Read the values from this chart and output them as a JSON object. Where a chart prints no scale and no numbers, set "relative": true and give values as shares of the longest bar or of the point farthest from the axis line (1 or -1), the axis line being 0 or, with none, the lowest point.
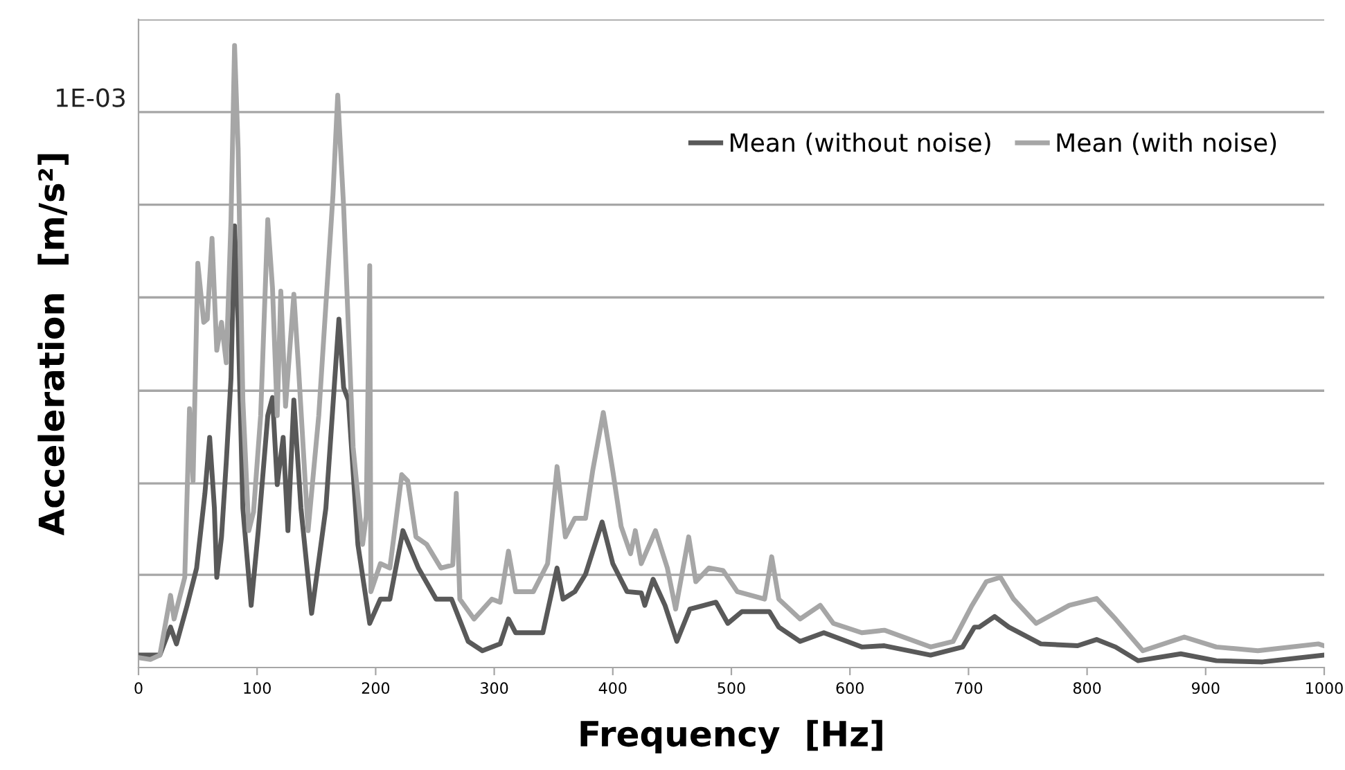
{
  "chart_data": {
    "type": "line",
    "relative": true,
    "xlabel": "Frequency  [Hz]",
    "ylabel": "Acceleration  [m/s²]",
    "xlim": [
      0,
      1000
    ],
    "xticks": [
      0,
      100,
      200,
      300,
      400,
      500,
      600,
      700,
      800,
      900,
      1000
    ],
    "legend": "top right",
    "line_style": "solid",
    "marker": "none",
    "ref_lines": [
      {
        "axis": "y",
        "value": 1.042,
        "label": null,
        "color": "#a6a6a6"
      },
      {
        "axis": "y",
        "value": 0.893,
        "label": "1E-03",
        "color": "#a6a6a6"
      },
      {
        "axis": "y",
        "value": 0.744,
        "label": null,
        "color": "#a6a6a6"
      },
      {
        "axis": "y",
        "value": 0.595,
        "label": null,
        "color": "#a6a6a6"
      },
      {
        "axis": "y",
        "value": 0.445,
        "label": null,
        "color": "#a6a6a6"
      },
      {
        "axis": "y",
        "value": 0.296,
        "label": null,
        "color": "#a6a6a6"
      },
      {
        "axis": "y",
        "value": 0.149,
        "label": null,
        "color": "#a6a6a6"
      }
    ],
    "series": [
      {
        "name": "Mean (without noise)",
        "color": "#595959",
        "x": [
          2,
          18,
          27,
          32,
          41,
          49,
          56,
          60,
          64,
          66,
          70,
          74,
          78,
          81,
          84,
          88,
          95,
          101,
          109,
          113,
          117,
          122,
          126,
          131,
          137,
          146,
          158,
          169,
          173,
          177,
          185,
          195,
          204,
          212,
          223,
          236,
          251,
          264,
          278,
          290,
          305,
          312,
          318,
          341,
          353,
          358,
          368,
          377,
          391,
          400,
          412,
          424,
          427,
          434,
          444,
          454,
          465,
          487,
          497,
          509,
          532,
          540,
          558,
          578,
          610,
          629,
          668,
          695,
          705,
          709,
          722,
          734,
          761,
          792,
          808,
          824,
          843,
          879,
          909,
          948,
          1000
        ],
        "values": [
          0.02,
          0.02,
          0.065,
          0.038,
          0.1,
          0.16,
          0.28,
          0.37,
          0.256,
          0.145,
          0.21,
          0.33,
          0.465,
          0.71,
          0.555,
          0.256,
          0.1,
          0.22,
          0.405,
          0.434,
          0.294,
          0.37,
          0.22,
          0.43,
          0.256,
          0.087,
          0.256,
          0.56,
          0.45,
          0.43,
          0.198,
          0.071,
          0.11,
          0.11,
          0.22,
          0.16,
          0.11,
          0.11,
          0.042,
          0.027,
          0.038,
          0.078,
          0.056,
          0.056,
          0.16,
          0.11,
          0.122,
          0.15,
          0.234,
          0.167,
          0.122,
          0.12,
          0.1,
          0.142,
          0.1,
          0.042,
          0.094,
          0.105,
          0.071,
          0.09,
          0.09,
          0.065,
          0.042,
          0.056,
          0.033,
          0.035,
          0.02,
          0.033,
          0.065,
          0.065,
          0.082,
          0.065,
          0.038,
          0.035,
          0.045,
          0.033,
          0.011,
          0.022,
          0.011,
          0.009,
          0.02
        ]
      },
      {
        "name": "Mean (with noise)",
        "color": "#a6a6a6",
        "x": [
          0,
          10,
          18,
          27,
          30,
          39,
          43,
          46,
          50,
          55,
          58,
          62,
          66,
          70,
          74,
          78,
          81,
          84,
          88,
          93,
          97,
          103,
          109,
          113,
          117,
          120,
          124,
          131,
          135,
          143,
          152,
          164,
          168,
          173,
          181,
          189,
          192,
          195,
          196,
          204,
          212,
          222,
          227,
          234,
          243,
          255,
          265,
          268,
          271,
          283,
          298,
          305,
          312,
          318,
          333,
          345,
          353,
          360,
          368,
          377,
          383,
          392,
          400,
          407,
          415,
          419,
          424,
          436,
          446,
          453,
          464,
          470,
          481,
          493,
          505,
          528,
          534,
          540,
          558,
          575,
          586,
          610,
          629,
          668,
          687,
          703,
          715,
          727,
          738,
          757,
          785,
          808,
          824,
          847,
          882,
          909,
          944,
          995,
          1000
        ],
        "values": [
          0.016,
          0.013,
          0.02,
          0.116,
          0.078,
          0.145,
          0.416,
          0.3,
          0.65,
          0.555,
          0.56,
          0.69,
          0.51,
          0.555,
          0.49,
          0.72,
          1.0,
          0.835,
          0.43,
          0.22,
          0.25,
          0.405,
          0.72,
          0.61,
          0.405,
          0.605,
          0.42,
          0.6,
          0.48,
          0.22,
          0.405,
          0.76,
          0.92,
          0.74,
          0.354,
          0.198,
          0.243,
          0.646,
          0.122,
          0.167,
          0.16,
          0.31,
          0.3,
          0.21,
          0.198,
          0.16,
          0.165,
          0.28,
          0.11,
          0.078,
          0.11,
          0.105,
          0.187,
          0.122,
          0.122,
          0.167,
          0.323,
          0.21,
          0.24,
          0.24,
          0.316,
          0.41,
          0.316,
          0.227,
          0.183,
          0.22,
          0.167,
          0.22,
          0.16,
          0.094,
          0.21,
          0.138,
          0.16,
          0.156,
          0.122,
          0.11,
          0.178,
          0.11,
          0.078,
          0.1,
          0.071,
          0.056,
          0.06,
          0.033,
          0.042,
          0.1,
          0.138,
          0.145,
          0.11,
          0.071,
          0.1,
          0.111,
          0.078,
          0.027,
          0.049,
          0.033,
          0.027,
          0.038,
          0.035
        ]
      }
    ]
  }
}
